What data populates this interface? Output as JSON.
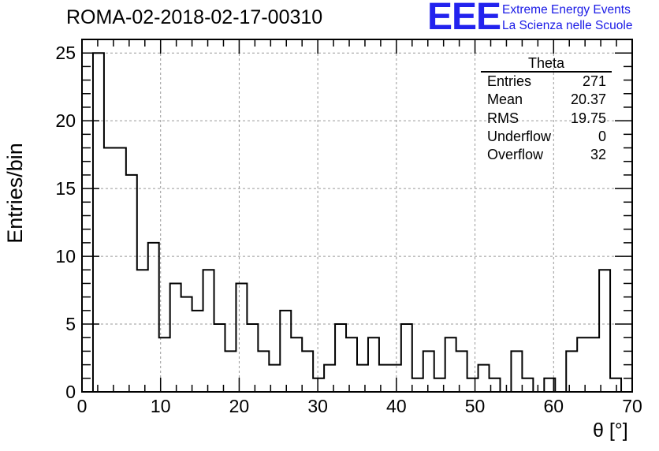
{
  "title": "ROMA-02-2018-02-17-00310",
  "logo": {
    "mark": "EEE",
    "line1": "Extreme Energy Events",
    "line2": "La Scienza nelle Scuole",
    "color": "#2222ee"
  },
  "stats": {
    "title": "Theta",
    "rows": [
      {
        "label": "Entries",
        "value": "271"
      },
      {
        "label": "Mean",
        "value": "20.37"
      },
      {
        "label": "RMS",
        "value": "19.75"
      },
      {
        "label": "Underflow",
        "value": "0"
      },
      {
        "label": "Overflow",
        "value": "32"
      }
    ]
  },
  "chart_data": {
    "type": "histogram",
    "title": "ROMA-02-2018-02-17-00310",
    "xlabel": "θ [°]",
    "ylabel": "Entries/bin",
    "xlim": [
      0,
      70
    ],
    "ylim": [
      0,
      26
    ],
    "bin_width": 1.4,
    "bin_start": 0,
    "x_ticks": [
      0,
      10,
      20,
      30,
      40,
      50,
      60,
      70
    ],
    "y_ticks": [
      0,
      5,
      10,
      15,
      20,
      25
    ],
    "grid": true,
    "values": [
      0,
      25,
      18,
      18,
      16,
      9,
      11,
      4,
      8,
      7,
      6,
      9,
      5,
      3,
      8,
      5,
      3,
      2,
      6,
      4,
      3,
      1,
      2,
      5,
      4,
      2,
      4,
      2,
      2,
      5,
      1,
      3,
      1,
      4,
      3,
      1,
      2,
      1,
      0,
      3,
      1,
      0,
      1,
      0,
      3,
      4,
      4,
      9,
      1,
      0
    ]
  }
}
